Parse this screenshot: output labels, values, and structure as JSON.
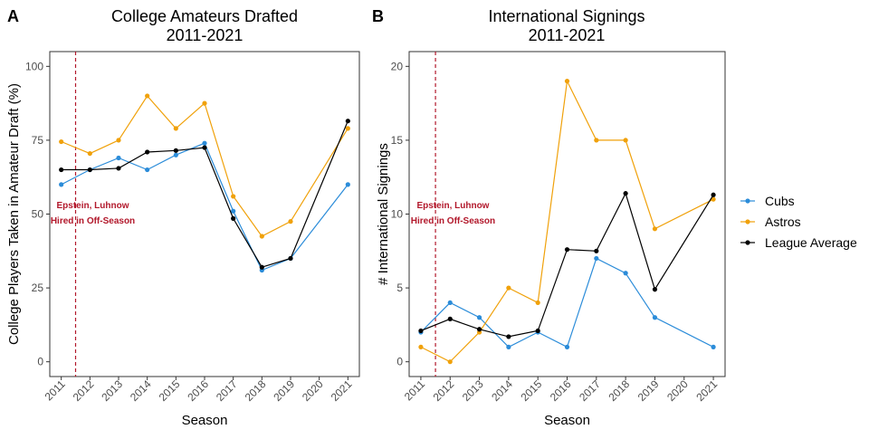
{
  "legend": {
    "items": [
      {
        "label": "Cubs",
        "color": "#2b8cd9"
      },
      {
        "label": "Astros",
        "color": "#f0a10a"
      },
      {
        "label": "League Average",
        "color": "#000000"
      }
    ]
  },
  "chart_data": [
    {
      "type": "line",
      "tag": "A",
      "title": [
        "College Amateurs Drafted",
        "2011-2021"
      ],
      "xlabel": "Season",
      "ylabel": "College Players Taken in Amateur Draft (%)",
      "xlim": [
        2010.6,
        2021.4
      ],
      "ylim": [
        -5,
        105
      ],
      "x_ticks": [
        2011,
        2012,
        2013,
        2014,
        2015,
        2016,
        2017,
        2018,
        2019,
        2020,
        2021
      ],
      "y_ticks": [
        0,
        25,
        50,
        75,
        100
      ],
      "grid": true,
      "vline": {
        "x": 2011.5,
        "color": "#b2182b",
        "style": "dashed"
      },
      "annotation": {
        "lines": [
          "Epstein, Luhnow",
          "Hired in Off-Season"
        ],
        "x": 2012.1,
        "y": 52
      },
      "series": [
        {
          "name": "Cubs",
          "color": "#2b8cd9",
          "x": [
            2011,
            2012,
            2013,
            2014,
            2015,
            2016,
            2017,
            2018,
            2019,
            2021
          ],
          "values": [
            60,
            65,
            69,
            65,
            70,
            74,
            51,
            31,
            35,
            60
          ]
        },
        {
          "name": "Astros",
          "color": "#f0a10a",
          "x": [
            2011,
            2012,
            2013,
            2014,
            2015,
            2016,
            2017,
            2018,
            2019,
            2021
          ],
          "values": [
            74.5,
            70.5,
            75,
            90,
            79,
            87.5,
            56,
            42.5,
            47.5,
            79
          ]
        },
        {
          "name": "League Average",
          "color": "#000000",
          "x": [
            2011,
            2012,
            2013,
            2014,
            2015,
            2016,
            2017,
            2018,
            2019,
            2021
          ],
          "values": [
            65,
            65,
            65.5,
            71,
            71.5,
            72.5,
            48.5,
            32,
            35,
            81.5
          ]
        }
      ]
    },
    {
      "type": "line",
      "tag": "B",
      "title": [
        "International Signings",
        "2011-2021"
      ],
      "xlabel": "Season",
      "ylabel": "# International Signings",
      "xlim": [
        2010.6,
        2021.4
      ],
      "ylim": [
        -1,
        21
      ],
      "x_ticks": [
        2011,
        2012,
        2013,
        2014,
        2015,
        2016,
        2017,
        2018,
        2019,
        2020,
        2021
      ],
      "y_ticks": [
        0,
        5,
        10,
        15,
        20
      ],
      "grid": true,
      "vline": {
        "x": 2011.5,
        "color": "#b2182b",
        "style": "dashed"
      },
      "annotation": {
        "lines": [
          "Epstein, Luhnow",
          "Hired in Off-Season"
        ],
        "x": 2012.1,
        "y": 10.4
      },
      "series": [
        {
          "name": "Cubs",
          "color": "#2b8cd9",
          "x": [
            2011,
            2012,
            2013,
            2014,
            2015,
            2016,
            2017,
            2018,
            2019,
            2021
          ],
          "values": [
            2,
            4,
            3,
            1,
            2,
            1,
            7,
            6,
            3,
            1
          ]
        },
        {
          "name": "Astros",
          "color": "#f0a10a",
          "x": [
            2011,
            2012,
            2013,
            2014,
            2015,
            2016,
            2017,
            2018,
            2019,
            2021
          ],
          "values": [
            1,
            0,
            2,
            5,
            4,
            19,
            15,
            15,
            9,
            11
          ]
        },
        {
          "name": "League Average",
          "color": "#000000",
          "x": [
            2011,
            2012,
            2013,
            2014,
            2015,
            2016,
            2017,
            2018,
            2019,
            2021
          ],
          "values": [
            2.1,
            2.9,
            2.2,
            1.7,
            2.1,
            7.6,
            7.5,
            11.4,
            4.9,
            11.3
          ]
        }
      ]
    }
  ]
}
